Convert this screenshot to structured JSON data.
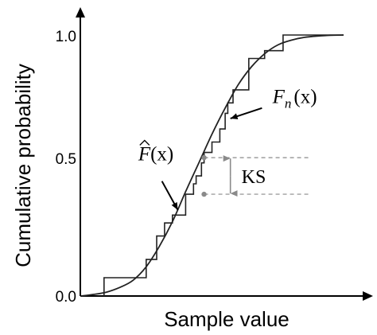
{
  "chart_data": {
    "type": "line",
    "title": "",
    "xlabel": "Sample value",
    "ylabel": "Cumulative probability",
    "ylim": [
      0,
      1
    ],
    "y_ticks": [
      {
        "value": 0.0,
        "label": "0.0"
      },
      {
        "value": 0.5,
        "label": "0.5"
      },
      {
        "value": 1.0,
        "label": "1.0"
      }
    ],
    "grid": false,
    "series": [
      {
        "kind": "smooth",
        "x": [
          0.0,
          0.05,
          0.1,
          0.15,
          0.2,
          0.25,
          0.3,
          0.35,
          0.4,
          0.45,
          0.5,
          0.55,
          0.6,
          0.65,
          0.7,
          0.75,
          0.8,
          0.85,
          0.9,
          0.95,
          1.0
        ],
        "y": [
          0.0,
          0.006,
          0.015,
          0.033,
          0.06,
          0.112,
          0.19,
          0.285,
          0.4,
          0.51,
          0.62,
          0.72,
          0.81,
          0.878,
          0.928,
          0.962,
          0.98,
          0.991,
          0.996,
          0.999,
          1.0
        ]
      },
      {
        "kind": "step",
        "x": [
          0.09,
          0.25,
          0.29,
          0.32,
          0.35,
          0.4,
          0.43,
          0.44,
          0.46,
          0.47,
          0.5,
          0.53,
          0.55,
          0.56,
          0.58,
          0.64,
          0.7,
          0.77,
          1.0
        ],
        "y": [
          0.07,
          0.14,
          0.23,
          0.28,
          0.31,
          0.39,
          0.43,
          0.46,
          0.51,
          0.55,
          0.59,
          0.64,
          0.7,
          0.74,
          0.79,
          0.91,
          0.94,
          1.0,
          1.0
        ]
      }
    ],
    "annotations": [
      {
        "name": "f-hat",
        "base": "F",
        "arg": "(x)",
        "x": 0.22,
        "y": 0.52,
        "arrow_to": [
          0.37,
          0.33
        ]
      },
      {
        "name": "f-n",
        "base": "F",
        "sub": "n",
        "arg": "(x)",
        "x": 0.73,
        "y": 0.74,
        "arrow_to": [
          0.57,
          0.68
        ]
      },
      {
        "name": "ks",
        "label": "KS",
        "x": 0.47,
        "y_top": 0.53,
        "y_bottom": 0.39
      }
    ]
  }
}
